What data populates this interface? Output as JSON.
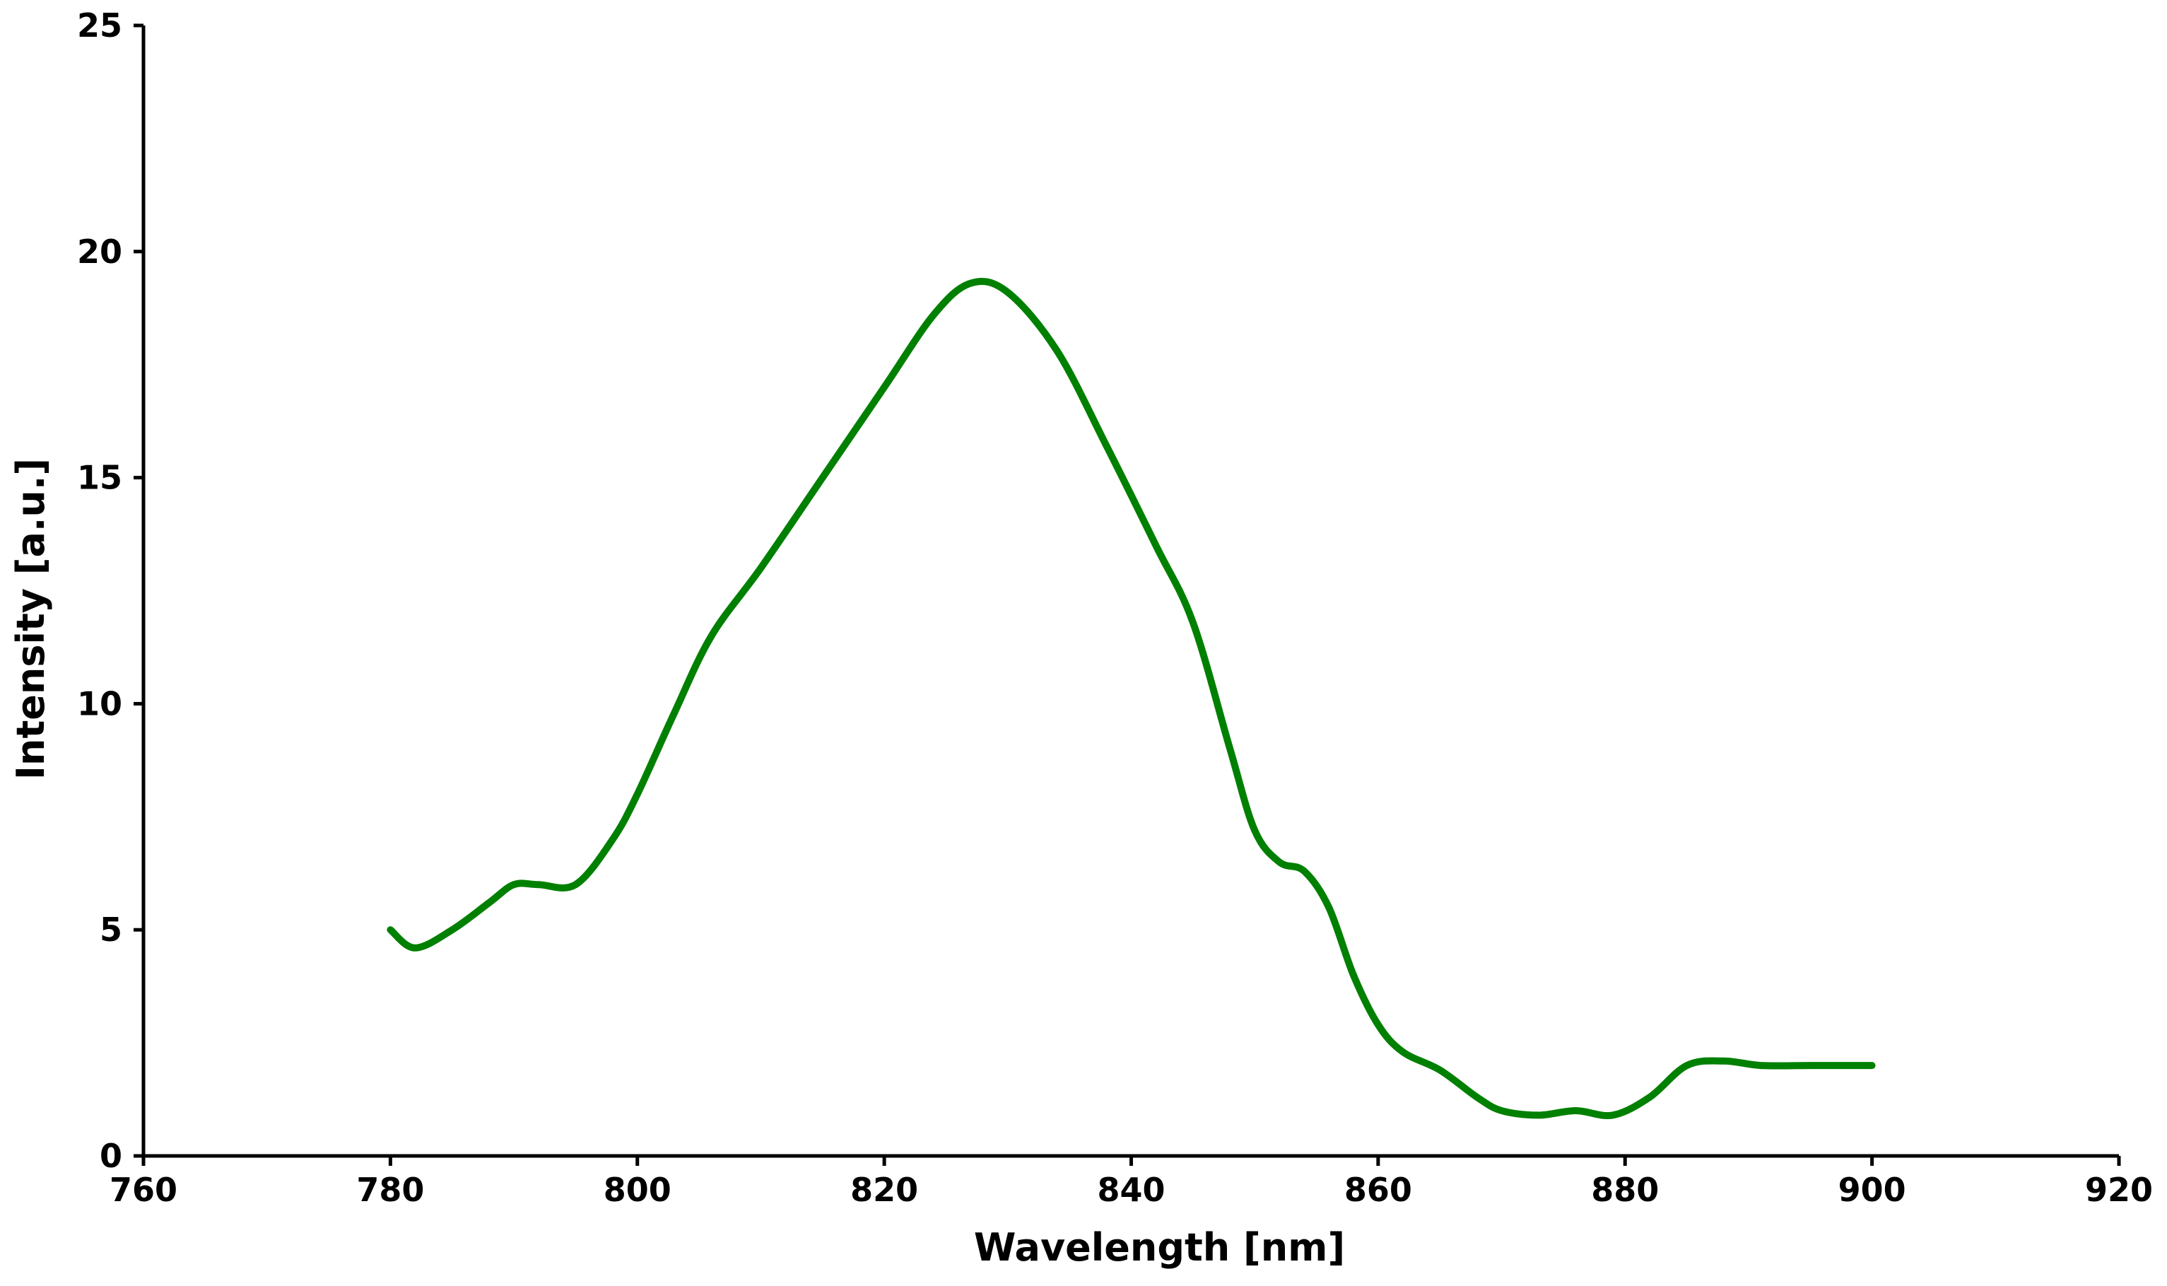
{
  "chart_data": {
    "type": "line",
    "title": "",
    "xlabel": "Wavelength [nm]",
    "ylabel": "Intensity [a.u.]",
    "xlim": [
      760,
      920
    ],
    "ylim": [
      0,
      25
    ],
    "xticks": [
      760,
      780,
      800,
      820,
      840,
      860,
      880,
      900,
      920
    ],
    "yticks": [
      0,
      5,
      10,
      15,
      20,
      25
    ],
    "grid": false,
    "legend": "none",
    "series": [
      {
        "color": "#008000",
        "x": [
          780,
          782,
          785,
          788,
          790,
          792,
          795,
          798,
          800,
          803,
          806,
          810,
          815,
          820,
          824,
          827,
          830,
          834,
          838,
          842,
          845,
          848,
          850,
          852,
          854,
          856,
          858,
          860,
          862,
          865,
          868,
          870,
          873,
          876,
          879,
          882,
          885,
          888,
          891,
          895,
          900
        ],
        "y": [
          5.0,
          4.6,
          5.0,
          5.6,
          6.0,
          6.0,
          6.0,
          7.0,
          8.0,
          9.8,
          11.5,
          13.0,
          15.0,
          17.0,
          18.6,
          19.3,
          19.1,
          17.8,
          15.7,
          13.5,
          11.8,
          9.0,
          7.2,
          6.5,
          6.3,
          5.5,
          4.0,
          2.9,
          2.3,
          1.9,
          1.3,
          1.0,
          0.9,
          1.0,
          0.9,
          1.3,
          2.0,
          2.1,
          2.0,
          2.0,
          2.0
        ]
      }
    ]
  }
}
